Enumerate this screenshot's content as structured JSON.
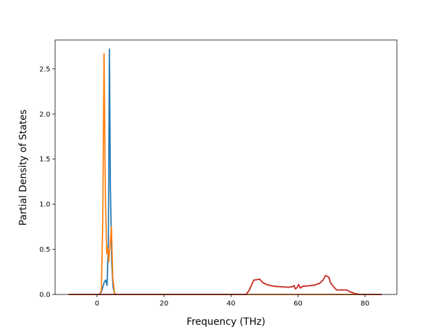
{
  "chart_data": {
    "type": "line",
    "title": "",
    "xlabel": "Frequency (THz)",
    "ylabel": "Partial Density of States",
    "xlim": [
      -12.5,
      89.5
    ],
    "ylim": [
      0,
      2.5
    ],
    "ylim_top": 2.82,
    "xticks": [
      0,
      20,
      40,
      60,
      80
    ],
    "xtick_labels": [
      "0",
      "20",
      "40",
      "60",
      "80"
    ],
    "yticks": [
      0.0,
      0.5,
      1.0,
      1.5,
      2.0,
      2.5
    ],
    "ytick_labels": [
      "0.0",
      "0.5",
      "1.0",
      "1.5",
      "2.0",
      "2.5"
    ],
    "grid": false,
    "legend": "none",
    "series": [
      {
        "color": "#1f77b4",
        "points": [
          [
            -8.5,
            0
          ],
          [
            0.5,
            0
          ],
          [
            1.2,
            0.02
          ],
          [
            1.7,
            0.08
          ],
          [
            2.2,
            0.14
          ],
          [
            2.6,
            0.16
          ],
          [
            3.0,
            0.1
          ],
          [
            3.4,
            0.6
          ],
          [
            3.7,
            2.72
          ],
          [
            4.0,
            1.2
          ],
          [
            4.4,
            0.35
          ],
          [
            4.8,
            0.08
          ],
          [
            5.3,
            0.0
          ],
          [
            44.5,
            0
          ],
          [
            85,
            0
          ]
        ]
      },
      {
        "color": "#ff7f0e",
        "points": [
          [
            -8.5,
            0
          ],
          [
            0.8,
            0
          ],
          [
            1.3,
            0.05
          ],
          [
            1.7,
            0.8
          ],
          [
            2.1,
            2.67
          ],
          [
            2.5,
            1.1
          ],
          [
            2.9,
            0.45
          ],
          [
            3.2,
            0.52
          ],
          [
            3.5,
            0.36
          ],
          [
            3.9,
            0.55
          ],
          [
            4.3,
            0.75
          ],
          [
            4.7,
            0.2
          ],
          [
            5.2,
            0.02
          ],
          [
            5.6,
            0
          ],
          [
            44.5,
            0
          ],
          [
            85,
            0
          ]
        ]
      },
      {
        "color": "#2ca02c",
        "points": [
          [
            -8.5,
            0
          ],
          [
            44.5,
            0
          ],
          [
            45.5,
            0.05
          ],
          [
            46.3,
            0.12
          ],
          [
            46.8,
            0.16
          ],
          [
            48.0,
            0.165
          ],
          [
            48.5,
            0.17
          ],
          [
            49.5,
            0.13
          ],
          [
            51,
            0.105
          ],
          [
            53,
            0.09
          ],
          [
            55,
            0.085
          ],
          [
            57,
            0.08
          ],
          [
            58.3,
            0.085
          ],
          [
            58.8,
            0.1
          ],
          [
            59.2,
            0.06
          ],
          [
            59.8,
            0.08
          ],
          [
            60.2,
            0.11
          ],
          [
            60.7,
            0.07
          ],
          [
            61.4,
            0.09
          ],
          [
            63,
            0.095
          ],
          [
            65,
            0.105
          ],
          [
            66.5,
            0.125
          ],
          [
            67.5,
            0.16
          ],
          [
            68.2,
            0.21
          ],
          [
            69.2,
            0.19
          ],
          [
            69.7,
            0.13
          ],
          [
            70.5,
            0.09
          ],
          [
            71.5,
            0.05
          ],
          [
            73,
            0.05
          ],
          [
            74.5,
            0.05
          ],
          [
            75.5,
            0.03
          ],
          [
            77,
            0.01
          ],
          [
            78.5,
            0
          ],
          [
            85,
            0
          ]
        ]
      },
      {
        "color": "#d62728",
        "points": [
          [
            -8.5,
            0
          ],
          [
            44.5,
            0
          ],
          [
            45.5,
            0.05
          ],
          [
            46.3,
            0.12
          ],
          [
            46.8,
            0.16
          ],
          [
            48.0,
            0.165
          ],
          [
            48.5,
            0.17
          ],
          [
            49.5,
            0.13
          ],
          [
            51,
            0.105
          ],
          [
            53,
            0.09
          ],
          [
            55,
            0.085
          ],
          [
            57,
            0.08
          ],
          [
            58.3,
            0.085
          ],
          [
            58.8,
            0.1
          ],
          [
            59.2,
            0.06
          ],
          [
            59.8,
            0.08
          ],
          [
            60.2,
            0.11
          ],
          [
            60.7,
            0.07
          ],
          [
            61.4,
            0.09
          ],
          [
            63,
            0.095
          ],
          [
            65,
            0.105
          ],
          [
            66.5,
            0.125
          ],
          [
            67.5,
            0.16
          ],
          [
            68.2,
            0.21
          ],
          [
            69.2,
            0.19
          ],
          [
            69.7,
            0.13
          ],
          [
            70.5,
            0.09
          ],
          [
            71.5,
            0.05
          ],
          [
            73,
            0.05
          ],
          [
            74.5,
            0.05
          ],
          [
            75.5,
            0.03
          ],
          [
            77,
            0.01
          ],
          [
            78.5,
            0
          ],
          [
            85,
            0
          ]
        ]
      }
    ]
  }
}
